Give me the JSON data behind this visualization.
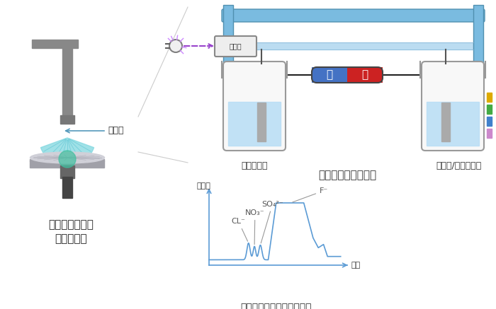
{
  "left_label_line1": "洗浄液の清浄度",
  "left_label_line2": "管理が重要",
  "washing_liquid_label": "洗浄液",
  "center_title": "洗浄液のイオン分析",
  "bottom_title": "フッ酸中のイオン分析結果",
  "buffer_label": "バッファー",
  "washing_buffer_label": "洗浄液/バッファー",
  "detector_label": "検出部",
  "y_axis_label": "吸光度",
  "x_axis_label": "時間",
  "bg_color": "#ffffff",
  "tube_color": "#7abbe0",
  "water_color": "#b8ddf5",
  "graph_line_color": "#5b9bd5",
  "battery_neg_color": "#4472c4",
  "battery_pos_color": "#cc2222",
  "electrode_color": "#aaaaaa",
  "pipe_color": "#7abbe0",
  "pipe_border_color": "#5090b0",
  "wire_color": "#222222",
  "beaker_fill": "#f8f8f8",
  "beaker_edge": "#999999",
  "ion_label_color": "#555555",
  "annot_line_color": "#999999",
  "band_colors": [
    "#cc88cc",
    "#4080cc",
    "#44aa44",
    "#ddaa00"
  ],
  "light_ray_color": "#cc88ff",
  "purple_arrow_color": "#9944cc",
  "det_box_fill": "#eeeeee",
  "det_box_edge": "#888888"
}
